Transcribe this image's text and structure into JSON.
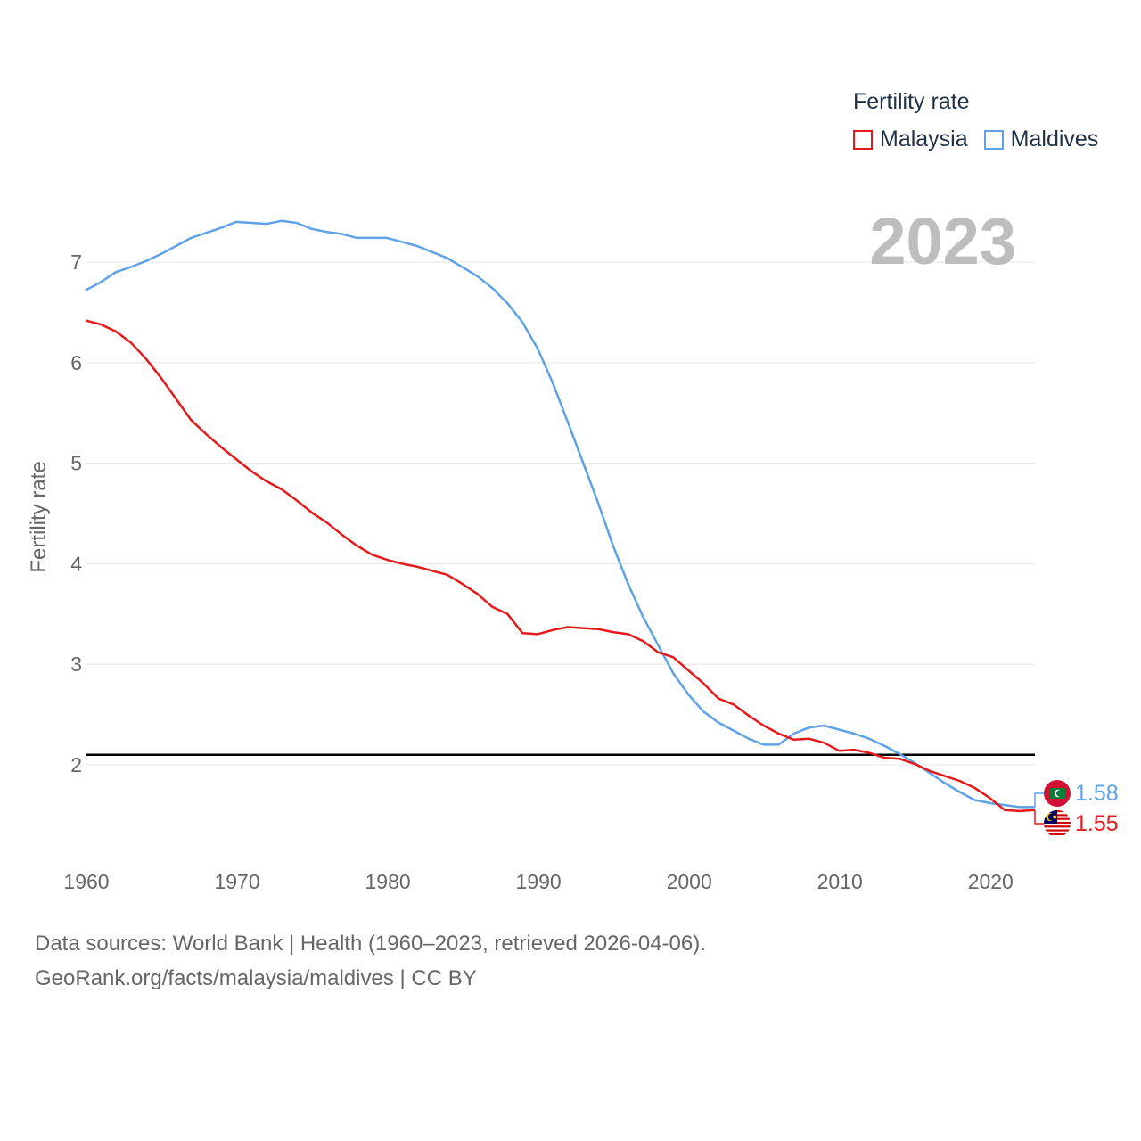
{
  "chart_data": {
    "type": "line",
    "title": "Fertility rate",
    "ylabel": "Fertility rate",
    "xlabel": "",
    "xlim": [
      1960,
      2023
    ],
    "ylim": [
      1.1,
      7.6
    ],
    "year_label": "2023",
    "x_ticks": [
      1960,
      1970,
      1980,
      1990,
      2000,
      2010,
      2020
    ],
    "y_ticks": [
      2,
      3,
      4,
      5,
      6,
      7
    ],
    "reference_line": {
      "y": 2.1,
      "color": "#000000"
    },
    "series": [
      {
        "name": "Malaysia",
        "color": "#e41a1c",
        "end_label": "1.55",
        "x": [
          1960,
          1961,
          1962,
          1963,
          1964,
          1965,
          1966,
          1967,
          1968,
          1969,
          1970,
          1971,
          1972,
          1973,
          1974,
          1975,
          1976,
          1977,
          1978,
          1979,
          1980,
          1981,
          1982,
          1983,
          1984,
          1985,
          1986,
          1987,
          1988,
          1989,
          1990,
          1991,
          1992,
          1993,
          1994,
          1995,
          1996,
          1997,
          1998,
          1999,
          2000,
          2001,
          2002,
          2003,
          2004,
          2005,
          2006,
          2007,
          2008,
          2009,
          2010,
          2011,
          2012,
          2013,
          2014,
          2015,
          2016,
          2017,
          2018,
          2019,
          2020,
          2021,
          2022,
          2023
        ],
        "values": [
          6.42,
          6.38,
          6.31,
          6.2,
          6.04,
          5.85,
          5.64,
          5.43,
          5.29,
          5.16,
          5.04,
          4.92,
          4.82,
          4.74,
          4.63,
          4.51,
          4.41,
          4.29,
          4.18,
          4.09,
          4.04,
          4.0,
          3.97,
          3.93,
          3.89,
          3.8,
          3.7,
          3.57,
          3.5,
          3.31,
          3.3,
          3.34,
          3.37,
          3.36,
          3.35,
          3.32,
          3.3,
          3.23,
          3.12,
          3.07,
          2.94,
          2.81,
          2.66,
          2.6,
          2.49,
          2.39,
          2.31,
          2.25,
          2.26,
          2.22,
          2.14,
          2.15,
          2.12,
          2.07,
          2.06,
          2.01,
          1.94,
          1.89,
          1.84,
          1.77,
          1.67,
          1.55,
          1.54,
          1.55
        ]
      },
      {
        "name": "Maldives",
        "color": "#5fa3e6",
        "end_label": "1.58",
        "x": [
          1960,
          1961,
          1962,
          1963,
          1964,
          1965,
          1966,
          1967,
          1968,
          1969,
          1970,
          1971,
          1972,
          1973,
          1974,
          1975,
          1976,
          1977,
          1978,
          1979,
          1980,
          1981,
          1982,
          1983,
          1984,
          1985,
          1986,
          1987,
          1988,
          1989,
          1990,
          1991,
          1992,
          1993,
          1994,
          1995,
          1996,
          1997,
          1998,
          1999,
          2000,
          2001,
          2002,
          2003,
          2004,
          2005,
          2006,
          2007,
          2008,
          2009,
          2010,
          2011,
          2012,
          2013,
          2014,
          2015,
          2016,
          2017,
          2018,
          2019,
          2020,
          2021,
          2022,
          2023
        ],
        "values": [
          6.72,
          6.8,
          6.9,
          6.95,
          7.01,
          7.08,
          7.16,
          7.24,
          7.29,
          7.34,
          7.4,
          7.39,
          7.38,
          7.41,
          7.39,
          7.33,
          7.3,
          7.28,
          7.24,
          7.24,
          7.24,
          7.2,
          7.16,
          7.1,
          7.04,
          6.95,
          6.86,
          6.74,
          6.59,
          6.4,
          6.14,
          5.8,
          5.41,
          5.01,
          4.61,
          4.18,
          3.8,
          3.47,
          3.19,
          2.91,
          2.7,
          2.53,
          2.42,
          2.34,
          2.26,
          2.2,
          2.2,
          2.31,
          2.37,
          2.39,
          2.35,
          2.31,
          2.26,
          2.19,
          2.11,
          2.02,
          1.92,
          1.82,
          1.73,
          1.65,
          1.62,
          1.6,
          1.58,
          1.58
        ]
      }
    ]
  },
  "legend": {
    "title": "Fertility rate",
    "items": [
      {
        "label": "Malaysia",
        "color": "#e41a1c"
      },
      {
        "label": "Maldives",
        "color": "#5fa3e6"
      }
    ]
  },
  "footer": {
    "sources": "Data sources: World Bank | Health (1960–2023, retrieved 2026-04-06).",
    "attribution": "GeoRank.org/facts/malaysia/maldives | CC BY"
  }
}
